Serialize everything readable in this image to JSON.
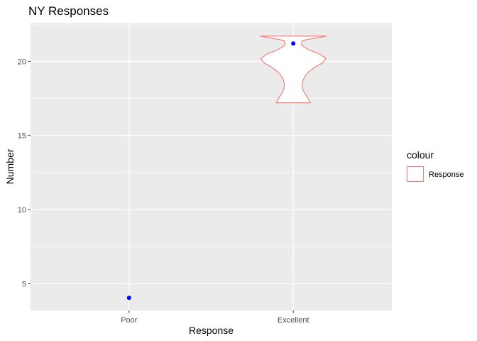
{
  "chart_data": {
    "type": "violin",
    "title": "NY Responses",
    "xlabel": "Response",
    "ylabel": "Number",
    "categories": [
      "Poor",
      "Excellent"
    ],
    "points": [
      {
        "x": "Poor",
        "y": 4.05
      },
      {
        "x": "Excellent",
        "y": 21.2
      }
    ],
    "violin": {
      "category": "Excellent",
      "ymin": 17.2,
      "ymax": 21.7,
      "density": [
        {
          "y": 17.2,
          "w": 0.23
        },
        {
          "y": 17.5,
          "w": 0.2
        },
        {
          "y": 17.8,
          "w": 0.16
        },
        {
          "y": 18.1,
          "w": 0.13
        },
        {
          "y": 18.4,
          "w": 0.12
        },
        {
          "y": 18.7,
          "w": 0.13
        },
        {
          "y": 19.0,
          "w": 0.16
        },
        {
          "y": 19.3,
          "w": 0.21
        },
        {
          "y": 19.6,
          "w": 0.29
        },
        {
          "y": 19.9,
          "w": 0.4
        },
        {
          "y": 20.2,
          "w": 0.44
        },
        {
          "y": 20.5,
          "w": 0.35
        },
        {
          "y": 20.8,
          "w": 0.2
        },
        {
          "y": 21.1,
          "w": 0.11
        },
        {
          "y": 21.4,
          "w": 0.12
        },
        {
          "y": 21.7,
          "w": 0.45
        }
      ]
    },
    "yticks": [
      5,
      10,
      15,
      20
    ],
    "ylim": [
      3.2,
      22.6
    ],
    "grid": true,
    "legend": {
      "title": "colour",
      "entries": [
        {
          "label": "Response",
          "color": "#F8766D"
        }
      ],
      "placement": "right"
    },
    "colors": {
      "panel": "#EBEBEB",
      "grid": "#FFFFFF",
      "violin_stroke": "#F8766D",
      "violin_fill": "#FFFFFF",
      "point": "#0000FF"
    }
  }
}
